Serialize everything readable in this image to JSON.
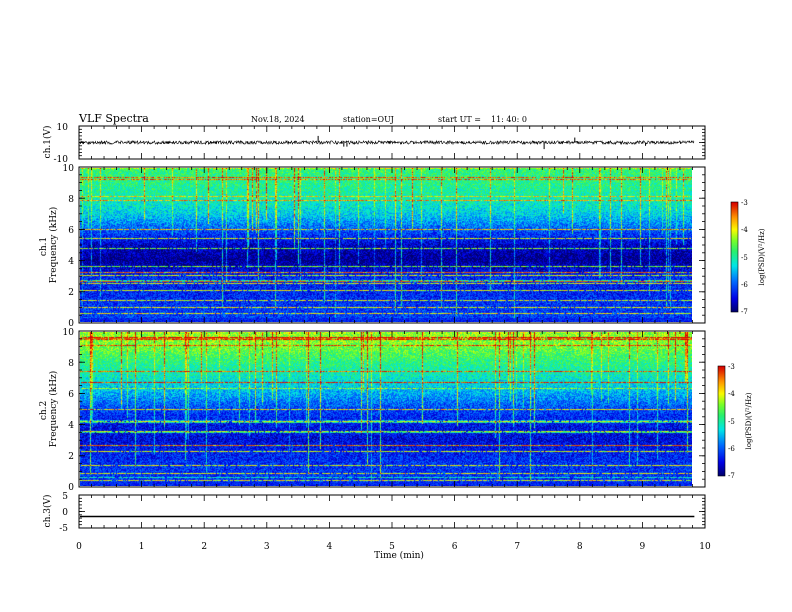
{
  "header": {
    "title": "VLF Spectra",
    "date": "Nov.18, 2024",
    "station": "station=OUJ",
    "start_label": "start  UT =",
    "start_time": "11: 40: 0"
  },
  "chart_data": [
    {
      "type": "line",
      "panel": "ch1-waveform",
      "ylabel": "ch.1(V)",
      "ylim": [
        -10,
        10
      ],
      "yticks": [
        "10",
        "-10"
      ],
      "xlim": [
        0,
        10
      ],
      "data_end_min": 9.83,
      "baseline": 0,
      "noise_amplitude_V": 1,
      "spikes": [
        {
          "t": 3.82,
          "v": 4
        },
        {
          "t": 4.23,
          "v": -2.5
        },
        {
          "t": 4.28,
          "v": -2.5
        },
        {
          "t": 7.43,
          "v": -4
        },
        {
          "t": 7.92,
          "v": 3
        },
        {
          "t": 9.05,
          "v": -2
        }
      ]
    },
    {
      "type": "heatmap",
      "panel": "ch1-spectrogram",
      "ylabel": "ch.1\nFrequency (kHz)",
      "ylim": [
        0,
        10
      ],
      "yticks": [
        "0",
        "2",
        "4",
        "6",
        "8",
        "10"
      ],
      "xlim": [
        0,
        10
      ],
      "data_end_min": 9.83,
      "colorbar": {
        "label": "log(PSD)(V²/Hz)",
        "range": [
          -7,
          -3
        ],
        "ticks": [
          "-3",
          "-4",
          "-5",
          "-6",
          "-7"
        ]
      },
      "line_freqs_kHz": [
        0.5,
        0.9,
        1.4,
        2.0,
        2.5,
        3.0,
        3.2,
        3.6,
        4.8,
        5.4,
        6.0
      ],
      "red_line_freqs_kHz": [
        3.2,
        2.6
      ],
      "background_by_freq": [
        {
          "f": 0.0,
          "v": -6.1
        },
        {
          "f": 1.0,
          "v": -6.2
        },
        {
          "f": 2.0,
          "v": -6.3
        },
        {
          "f": 3.0,
          "v": -6.3
        },
        {
          "f": 4.0,
          "v": -6.9
        },
        {
          "f": 5.0,
          "v": -6.6
        },
        {
          "f": 6.0,
          "v": -6.0
        },
        {
          "f": 7.0,
          "v": -5.4
        },
        {
          "f": 8.0,
          "v": -5.1
        },
        {
          "f": 9.0,
          "v": -4.9
        },
        {
          "f": 10.0,
          "v": -4.8
        }
      ]
    },
    {
      "type": "heatmap",
      "panel": "ch2-spectrogram",
      "ylabel": "ch.2\nFrequency (kHz)",
      "ylim": [
        0,
        10
      ],
      "yticks": [
        "0",
        "2",
        "4",
        "6",
        "8",
        "10"
      ],
      "xlim": [
        0,
        10
      ],
      "data_end_min": 9.83,
      "colorbar": {
        "label": "log(PSD)(V²/Hz)",
        "range": [
          -7,
          -3
        ],
        "ticks": [
          "-3",
          "-4",
          "-5",
          "-6",
          "-7"
        ]
      },
      "line_freqs_kHz": [
        0.3,
        0.8,
        1.3,
        2.2,
        2.6,
        3.5,
        4.2,
        5.0,
        6.7
      ],
      "red_line_freqs_kHz": [
        9.6,
        2.6
      ],
      "background_by_freq": [
        {
          "f": 0.0,
          "v": -6.2
        },
        {
          "f": 1.0,
          "v": -6.2
        },
        {
          "f": 2.0,
          "v": -6.3
        },
        {
          "f": 3.0,
          "v": -6.5
        },
        {
          "f": 4.0,
          "v": -6.4
        },
        {
          "f": 5.0,
          "v": -6.1
        },
        {
          "f": 6.0,
          "v": -5.6
        },
        {
          "f": 7.0,
          "v": -5.2
        },
        {
          "f": 8.0,
          "v": -4.9
        },
        {
          "f": 9.0,
          "v": -4.5
        },
        {
          "f": 10.0,
          "v": -4.3
        }
      ]
    },
    {
      "type": "line",
      "panel": "ch3-waveform",
      "ylabel": "ch.3(V)",
      "ylim": [
        -5,
        5
      ],
      "yticks": [
        "5",
        "0",
        "-5"
      ],
      "xlim": [
        0,
        10
      ],
      "data_end_min": 9.83,
      "baseline": -1.5
    }
  ],
  "xaxis": {
    "label": "Time (min)",
    "ticks": [
      "0",
      "1",
      "2",
      "3",
      "4",
      "5",
      "6",
      "7",
      "8",
      "9",
      "10"
    ]
  }
}
